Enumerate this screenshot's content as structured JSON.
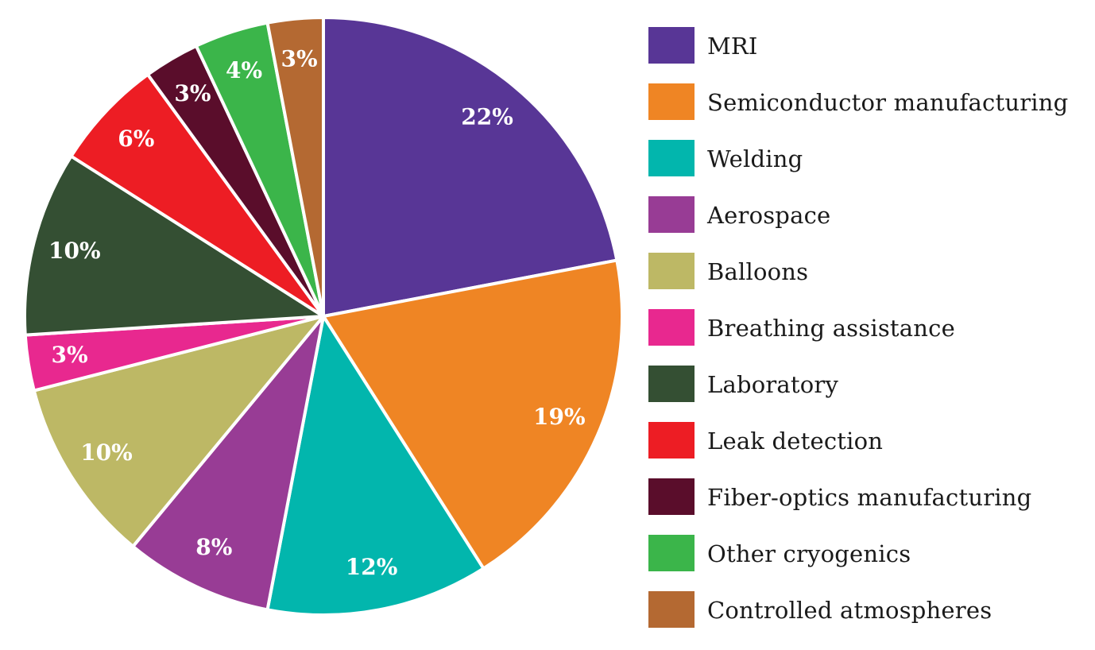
{
  "chart_data": {
    "type": "pie",
    "categories": [
      "MRI",
      "Semiconductor manufacturing",
      "Welding",
      "Aerospace",
      "Balloons",
      "Breathing assistance",
      "Laboratory",
      "Leak detection",
      "Fiber-optics manufacturing",
      "Other cryogenics",
      "Controlled atmospheres"
    ],
    "values": [
      22,
      19,
      12,
      8,
      10,
      3,
      10,
      6,
      3,
      4,
      3
    ],
    "value_labels": [
      "22%",
      "19%",
      "12%",
      "8%",
      "10%",
      "3%",
      "10%",
      "6%",
      "3%",
      "4%",
      "3%"
    ],
    "colors": [
      "#583696",
      "#ef8524",
      "#02b6ad",
      "#983c95",
      "#bdb865",
      "#e8288f",
      "#344f33",
      "#ed1d24",
      "#5a0d2b",
      "#3bb54a",
      "#b46932"
    ],
    "start_angle_deg": 0,
    "direction": "clockwise",
    "legend_position": "right",
    "title": ""
  }
}
